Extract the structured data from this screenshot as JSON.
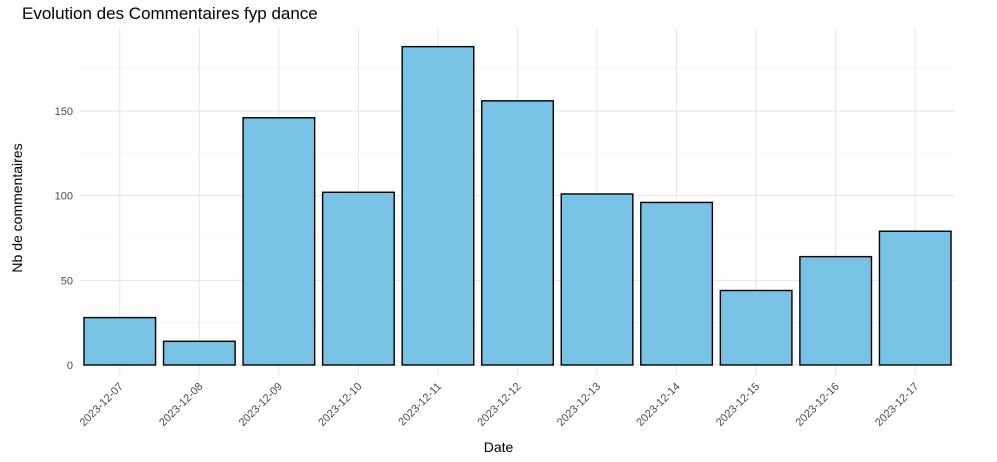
{
  "chart_data": {
    "type": "bar",
    "title": "Evolution des Commentaires fyp dance",
    "xlabel": "Date",
    "ylabel": "Nb de commentaires",
    "categories": [
      "2023-12-07",
      "2023-12-08",
      "2023-12-09",
      "2023-12-10",
      "2023-12-11",
      "2023-12-12",
      "2023-12-13",
      "2023-12-14",
      "2023-12-15",
      "2023-12-16",
      "2023-12-17"
    ],
    "values": [
      28,
      14,
      146,
      102,
      188,
      156,
      101,
      96,
      44,
      64,
      79
    ],
    "ylim": [
      0,
      197
    ],
    "yticks": [
      0,
      50,
      100,
      150
    ],
    "grid": true,
    "legend": "none",
    "colors": {
      "bar_fill": "#77C2E5",
      "bar_stroke": "#000000",
      "grid_major": "#E6E6E6",
      "grid_minor": "#F2F2F2",
      "tick_text": "#4D4D4D"
    }
  }
}
